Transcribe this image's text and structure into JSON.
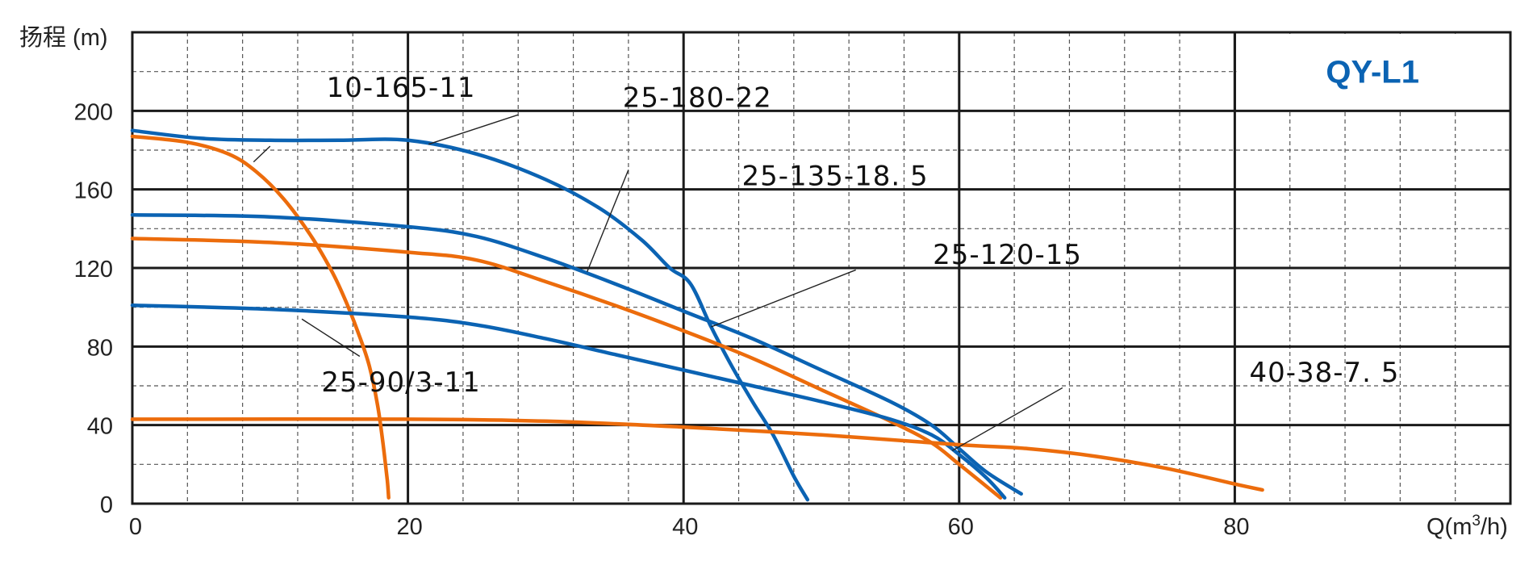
{
  "chart_data": {
    "type": "line",
    "title": "QY-L1",
    "title_color": "#0b63b3",
    "ylabel": "扬程 (m)",
    "xlabel": "Q(m",
    "xlabel_sup": "3",
    "xlabel_tail": "/h)",
    "xlim": [
      0,
      100
    ],
    "ylim": [
      0,
      240
    ],
    "x_ticks": [
      0,
      20,
      40,
      60,
      80
    ],
    "y_ticks": [
      0,
      40,
      80,
      120,
      160,
      200
    ],
    "x_tick_labels": [
      "0",
      "20",
      "40",
      "60",
      "80"
    ],
    "y_tick_labels": [
      "0",
      "40",
      "80",
      "120",
      "160",
      "200"
    ],
    "grid": true,
    "colors": {
      "blue": "#0b63b3",
      "orange": "#ec6c0c",
      "grid_major": "#1a1a1a",
      "grid_minor": "#555555"
    },
    "series": [
      {
        "name": "10-165-11",
        "color": "orange",
        "points": [
          [
            0,
            187
          ],
          [
            4,
            184
          ],
          [
            7,
            178
          ],
          [
            9,
            169
          ],
          [
            11,
            155
          ],
          [
            13,
            136
          ],
          [
            14.5,
            118
          ],
          [
            15.5,
            103
          ],
          [
            16.5,
            85
          ],
          [
            17.2,
            70
          ],
          [
            17.8,
            50
          ],
          [
            18.2,
            30
          ],
          [
            18.5,
            12
          ],
          [
            18.6,
            3
          ]
        ],
        "label_pos": [
          19.5,
          212
        ],
        "leader": [
          [
            10,
            182
          ],
          [
            8.8,
            174
          ]
        ]
      },
      {
        "name": "25-180-22",
        "color": "blue",
        "points": [
          [
            0,
            190
          ],
          [
            5,
            186
          ],
          [
            10,
            185
          ],
          [
            15,
            185
          ],
          [
            20,
            185
          ],
          [
            25,
            178
          ],
          [
            30,
            165
          ],
          [
            34,
            150
          ],
          [
            37,
            134
          ],
          [
            39,
            120
          ],
          [
            40.5,
            112
          ],
          [
            42,
            90
          ],
          [
            43.5,
            70
          ],
          [
            45,
            52
          ],
          [
            46.5,
            35
          ],
          [
            48,
            14
          ],
          [
            49,
            2
          ]
        ],
        "label_pos": [
          41,
          207
        ],
        "leader": [
          [
            28,
            198
          ],
          [
            21.5,
            183
          ]
        ]
      },
      {
        "name": "25-135-18. 5",
        "color": "blue",
        "points": [
          [
            0,
            147
          ],
          [
            10,
            146
          ],
          [
            20,
            141
          ],
          [
            25,
            136
          ],
          [
            30,
            125
          ],
          [
            35,
            112
          ],
          [
            40,
            98
          ],
          [
            45,
            84
          ],
          [
            50,
            68
          ],
          [
            55,
            52
          ],
          [
            58,
            40
          ],
          [
            60,
            28
          ],
          [
            62,
            16
          ],
          [
            64.5,
            5
          ]
        ],
        "label_pos": [
          51,
          167
        ],
        "leader": [
          [
            36,
            170
          ],
          [
            33,
            118
          ]
        ]
      },
      {
        "name": "25-120-15",
        "color": "orange",
        "points": [
          [
            0,
            135
          ],
          [
            10,
            133
          ],
          [
            20,
            128
          ],
          [
            25,
            124
          ],
          [
            30,
            113
          ],
          [
            35,
            101
          ],
          [
            40,
            88
          ],
          [
            45,
            74
          ],
          [
            50,
            58
          ],
          [
            55,
            42
          ],
          [
            58,
            31
          ],
          [
            60,
            20
          ],
          [
            63,
            3
          ]
        ],
        "label_pos": [
          63.5,
          127
        ],
        "leader": [
          [
            52.5,
            119
          ],
          [
            42,
            90
          ]
        ]
      },
      {
        "name": "25-90/3-11",
        "color": "blue",
        "points": [
          [
            0,
            101
          ],
          [
            10,
            99
          ],
          [
            20,
            95
          ],
          [
            25,
            91
          ],
          [
            30,
            84
          ],
          [
            35,
            76
          ],
          [
            40,
            68
          ],
          [
            45,
            60
          ],
          [
            50,
            52
          ],
          [
            55,
            43
          ],
          [
            58,
            35
          ],
          [
            60,
            25
          ],
          [
            62,
            13
          ],
          [
            63.3,
            3
          ]
        ],
        "label_pos": [
          19.5,
          62
        ],
        "leader": [
          [
            16.5,
            75
          ],
          [
            12.3,
            94
          ]
        ]
      },
      {
        "name": "40-38-7. 5",
        "color": "orange",
        "points": [
          [
            0,
            43
          ],
          [
            20,
            43
          ],
          [
            30,
            42
          ],
          [
            40,
            39
          ],
          [
            50,
            35
          ],
          [
            60,
            30
          ],
          [
            65,
            28
          ],
          [
            70,
            24
          ],
          [
            75,
            18
          ],
          [
            80,
            10
          ],
          [
            82,
            7
          ]
        ],
        "label_pos": [
          86.5,
          67
        ],
        "leader": [
          [
            67.5,
            59
          ],
          [
            59.5,
            27
          ]
        ]
      }
    ]
  }
}
